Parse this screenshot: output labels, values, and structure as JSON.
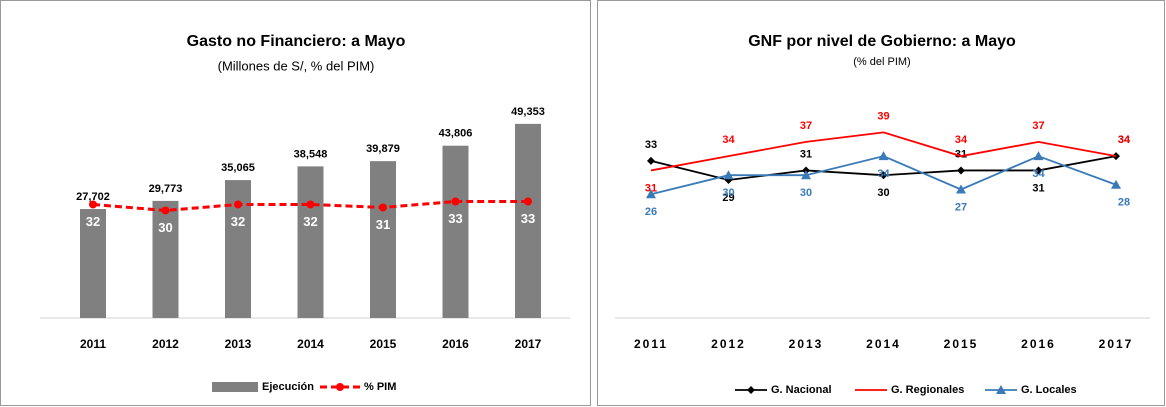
{
  "chart_data": [
    {
      "type": "bar",
      "title": "Gasto no Financiero: a Mayo",
      "subtitle": "(Millones de S/, % del PIM)",
      "categories": [
        "2011",
        "2012",
        "2013",
        "2014",
        "2015",
        "2016",
        "2017"
      ],
      "ylim": [
        0,
        60000
      ],
      "y2lim": [
        -6,
        73
      ],
      "series": [
        {
          "name": "Ejecución",
          "type": "bar",
          "color": "#808080",
          "values": [
            27702,
            29773,
            35065,
            38548,
            39879,
            43806,
            49353
          ],
          "value_labels": [
            "27,702",
            "29,773",
            "35,065",
            "38,548",
            "39,879",
            "43,806",
            "49,353"
          ]
        },
        {
          "name": "% PIM",
          "type": "line",
          "axis": "y2",
          "color": "#ff0000",
          "values": [
            32,
            30,
            32,
            32,
            31,
            33,
            33
          ]
        }
      ]
    },
    {
      "type": "line",
      "title": "GNF por nivel de Gobierno: a Mayo",
      "subtitle": "(% del PIM)",
      "categories": [
        "2011",
        "2012",
        "2013",
        "2014",
        "2015",
        "2016",
        "2017"
      ],
      "ylim": [
        0,
        50
      ],
      "series": [
        {
          "name": "G. Nacional",
          "color": "#000000",
          "marker": "diamond",
          "values": [
            33,
            29,
            31,
            30,
            31,
            31,
            34
          ]
        },
        {
          "name": "G. Regionales",
          "color": "#ff0000",
          "marker": "none",
          "values": [
            31,
            34,
            37,
            39,
            34,
            37,
            34
          ]
        },
        {
          "name": "G. Locales",
          "color": "#3a7ab8",
          "marker": "triangle",
          "values": [
            26,
            30,
            30,
            34,
            27,
            34,
            28
          ]
        }
      ]
    }
  ]
}
